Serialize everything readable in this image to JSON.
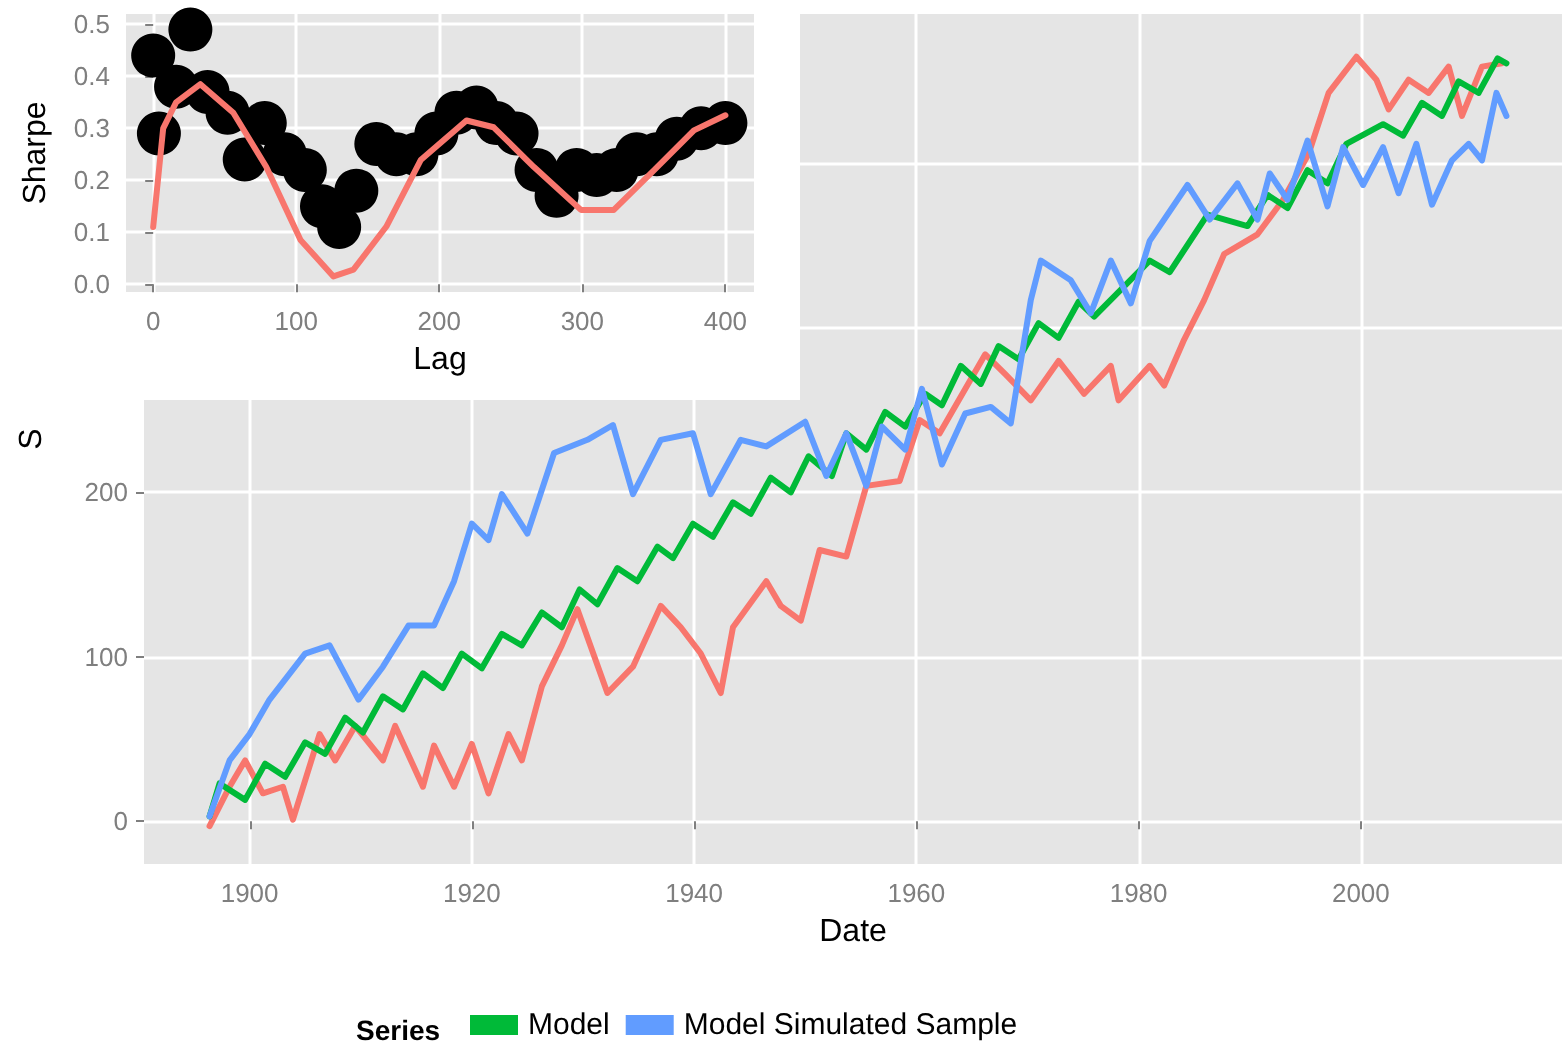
{
  "chart_data": [
    {
      "type": "line",
      "xlabel": "Date",
      "ylabel": "S",
      "legend_title": "Series",
      "legend": "bottom",
      "grid": true,
      "xlim": [
        1890.5,
        2018.1
      ],
      "xticks": [
        1900,
        1920,
        1940,
        1960,
        1980,
        2000
      ],
      "ylim": [
        -26,
        491
      ],
      "yticks": [
        0,
        100,
        200,
        {
          "value": 300,
          "label": null
        },
        {
          "value": 400,
          "label": null
        }
      ],
      "series": [
        {
          "color": "#f8766d",
          "x": [
            1896.4,
            1898.2,
            1899.6,
            1901.2,
            1903,
            1903.9,
            1906.3,
            1907.7,
            1909.5,
            1912,
            1913.1,
            1915.6,
            1916.6,
            1918.4,
            1920,
            1921.5,
            1923.3,
            1924.5,
            1926.3,
            1928.1,
            1929.5,
            1932.2,
            1934.5,
            1937,
            1938.8,
            1940.6,
            1942.4,
            1943.5,
            1946.5,
            1947.8,
            1949.6,
            1951.3,
            1953.7,
            1955.5,
            1958.5,
            1960.3,
            1962.1,
            1966.2,
            1968,
            1970.3,
            1972.8,
            1975.1,
            1977.5,
            1978.2,
            1981,
            1982.3,
            1984.1,
            1985.9,
            1987.7,
            1990.7,
            1993,
            1995.3,
            1997.1,
            1999.6,
            2001.4,
            2002.5,
            2004.3,
            2006.1,
            2007.9,
            2009.1,
            2010.9,
            2012.7
          ],
          "values": [
            -3,
            21,
            37,
            17,
            21,
            1,
            53,
            37,
            58,
            37,
            58,
            21,
            46,
            21,
            47,
            17,
            53,
            37,
            82,
            107,
            129,
            78,
            94,
            131,
            118,
            102,
            78,
            118,
            146,
            131,
            122,
            165,
            161,
            204,
            207,
            244,
            236,
            284,
            272,
            256,
            280,
            260,
            277,
            256,
            277,
            265,
            293,
            317,
            345,
            357,
            378,
            406,
            443,
            465,
            451,
            433,
            451,
            443,
            459,
            429,
            459,
            461
          ]
        },
        {
          "name": "Model",
          "color": "#00ba38",
          "x": [
            1896.4,
            1897.3,
            1899.6,
            1901.4,
            1903.2,
            1905,
            1906.8,
            1908.6,
            1910.2,
            1912,
            1913.8,
            1915.6,
            1917.4,
            1919.1,
            1920.9,
            1922.7,
            1924.5,
            1926.3,
            1928.1,
            1929.7,
            1931.3,
            1933.1,
            1934.9,
            1936.7,
            1938.1,
            1939.9,
            1941.7,
            1943.5,
            1945.1,
            1946.9,
            1948.7,
            1950.3,
            1952.4,
            1953.7,
            1955.5,
            1957.2,
            1959,
            1960.8,
            1962.3,
            1964,
            1965.8,
            1967.4,
            1969.2,
            1971,
            1972.8,
            1974.6,
            1976,
            1981,
            1982.8,
            1986.2,
            1989.8,
            1991.6,
            1993.4,
            1995.2,
            1997,
            1998.7,
            2002,
            2003.8,
            2005.5,
            2007.3,
            2008.8,
            2010.6,
            2012.3,
            2013.1
          ],
          "values": [
            3,
            23,
            13,
            35,
            27,
            48,
            41,
            63,
            54,
            76,
            68,
            90,
            81,
            102,
            93,
            114,
            107,
            127,
            118,
            141,
            132,
            154,
            146,
            167,
            160,
            181,
            173,
            194,
            187,
            209,
            200,
            222,
            210,
            236,
            226,
            249,
            240,
            260,
            253,
            277,
            266,
            289,
            281,
            303,
            294,
            316,
            307,
            341,
            334,
            369,
            362,
            381,
            373,
            396,
            388,
            412,
            424,
            417,
            437,
            429,
            450,
            443,
            464,
            461
          ]
        },
        {
          "name": "Model Simulated Sample",
          "color": "#619cff",
          "x": [
            1896.4,
            1898.2,
            1900,
            1901.8,
            1905,
            1907.2,
            1909.8,
            1912,
            1914.3,
            1916.6,
            1918.4,
            1920,
            1921.5,
            1922.7,
            1925,
            1927.4,
            1930.4,
            1932.7,
            1934.5,
            1937,
            1939.9,
            1941.5,
            1944.2,
            1946.5,
            1950,
            1951.9,
            1953.7,
            1955.5,
            1956.9,
            1959,
            1960.5,
            1962.3,
            1964.4,
            1966.7,
            1968.5,
            1970.3,
            1971.2,
            1973.9,
            1975.7,
            1977.5,
            1979.3,
            1981,
            1984.4,
            1986.4,
            1988.9,
            1990.7,
            1991.8,
            1993.4,
            1995.2,
            1997,
            1998.4,
            2000.2,
            2002,
            2003.4,
            2005,
            2006.4,
            2008.2,
            2009.7,
            2010.9,
            2012.2,
            2013.1
          ],
          "values": [
            3,
            37,
            53,
            74,
            102,
            107,
            74,
            94,
            119,
            119,
            146,
            181,
            171,
            199,
            175,
            224,
            232,
            241,
            199,
            232,
            236,
            199,
            232,
            228,
            243,
            210,
            236,
            204,
            240,
            226,
            263,
            217,
            248,
            252,
            242,
            317,
            341,
            329,
            309,
            341,
            315,
            353,
            387,
            366,
            388,
            366,
            394,
            378,
            414,
            374,
            410,
            387,
            410,
            382,
            412,
            375,
            402,
            412,
            402,
            443,
            429
          ]
        }
      ]
    },
    {
      "type": "scatter",
      "xlabel": "Lag",
      "ylabel": "Sharpe",
      "grid": true,
      "xlim": [
        -19,
        420
      ],
      "xticks": [
        0,
        100,
        200,
        300,
        400
      ],
      "ylim": [
        -0.015,
        0.52
      ],
      "yticks": [
        {
          "value": 0,
          "label": "0.0"
        },
        {
          "value": 0.1,
          "label": "0.1"
        },
        {
          "value": 0.2,
          "label": "0.2"
        },
        {
          "value": 0.3,
          "label": "0.3"
        },
        {
          "value": 0.4,
          "label": "0.4"
        },
        {
          "value": 0.5,
          "label": "0.5"
        }
      ],
      "series": [
        {
          "marker": "circle",
          "color": "#000000",
          "x": [
            0,
            4,
            16,
            26,
            38,
            52,
            64,
            78,
            92,
            106,
            118,
            130,
            142,
            156,
            170,
            184,
            198,
            212,
            226,
            240,
            254,
            268,
            282,
            296,
            310,
            324,
            338,
            352,
            366,
            383,
            400
          ],
          "values": [
            0.44,
            0.29,
            0.38,
            0.49,
            0.37,
            0.33,
            0.24,
            0.31,
            0.25,
            0.22,
            0.15,
            0.11,
            0.18,
            0.27,
            0.25,
            0.25,
            0.29,
            0.33,
            0.34,
            0.31,
            0.29,
            0.22,
            0.17,
            0.22,
            0.21,
            0.22,
            0.25,
            0.25,
            0.28,
            0.3,
            0.31
          ]
        },
        {
          "type": "line",
          "color": "#f8766d",
          "x": [
            0,
            7,
            16,
            33,
            56,
            79,
            103,
            126,
            140,
            163,
            187,
            219,
            238,
            266,
            299,
            322,
            350,
            378,
            400
          ],
          "values": [
            0.11,
            0.3,
            0.35,
            0.385,
            0.33,
            0.226,
            0.085,
            0.015,
            0.028,
            0.111,
            0.239,
            0.315,
            0.302,
            0.226,
            0.143,
            0.143,
            0.219,
            0.296,
            0.325
          ]
        }
      ]
    }
  ]
}
